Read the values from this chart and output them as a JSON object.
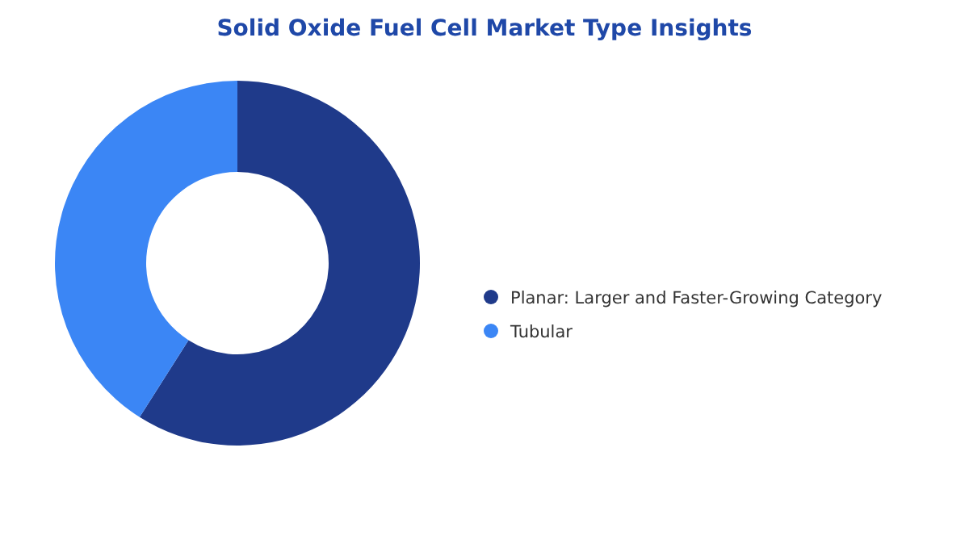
{
  "chart_data": {
    "type": "donut",
    "title": "Solid Oxide Fuel Cell Market Type Insights",
    "categories": [
      "Planar: Larger and Faster-Growing Category",
      "Tubular"
    ],
    "values": [
      59,
      41
    ],
    "colors": [
      "#1f3a8a",
      "#3b86f5"
    ],
    "legend": "right"
  }
}
